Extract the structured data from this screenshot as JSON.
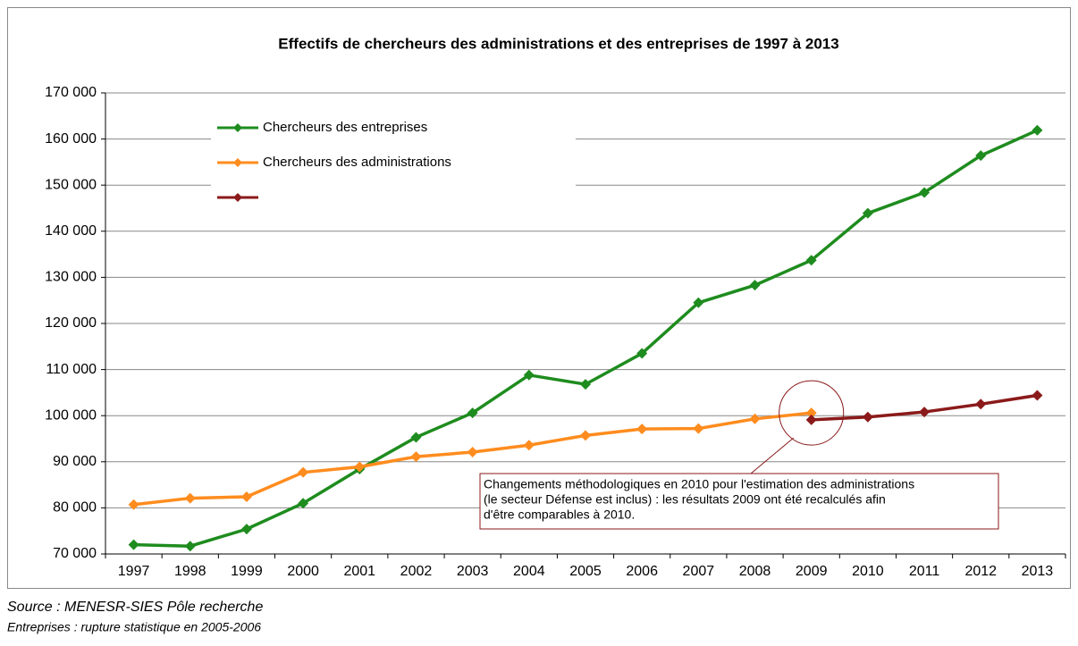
{
  "chart_data": {
    "type": "line",
    "title": "Effectifs de chercheurs des administrations et des entreprises de 1997 à 2013",
    "categories": [
      "1997",
      "1998",
      "1999",
      "2000",
      "2001",
      "2002",
      "2003",
      "2004",
      "2005",
      "2006",
      "2007",
      "2008",
      "2009",
      "2010",
      "2011",
      "2012",
      "2013"
    ],
    "series": [
      {
        "name": "Chercheurs des entreprises",
        "color": "#1e8c1e",
        "values": [
          72000,
          71700,
          75400,
          81000,
          88400,
          95300,
          100600,
          108800,
          106800,
          113500,
          124500,
          128300,
          133700,
          143900,
          148400,
          156400,
          161900
        ]
      },
      {
        "name": "Chercheurs des administrations",
        "color": "#ff8c1e",
        "values": [
          80700,
          82100,
          82400,
          87700,
          88900,
          91100,
          92100,
          93600,
          95700,
          97100,
          97200,
          99300,
          100600,
          null,
          null,
          null,
          null
        ]
      },
      {
        "color": "#8b1a1a",
        "values": [
          null,
          null,
          null,
          null,
          null,
          null,
          null,
          null,
          null,
          null,
          null,
          null,
          99100,
          99700,
          100800,
          102500,
          104400
        ]
      }
    ],
    "ylim": [
      70000,
      170000
    ],
    "yticks": [
      {
        "value": 70000,
        "label": "70 000"
      },
      {
        "value": 80000,
        "label": "80 000"
      },
      {
        "value": 90000,
        "label": "90 000"
      },
      {
        "value": 100000,
        "label": "100 000"
      },
      {
        "value": 110000,
        "label": "110 000"
      },
      {
        "value": 120000,
        "label": "120 000"
      },
      {
        "value": 130000,
        "label": "130 000"
      },
      {
        "value": 140000,
        "label": "140 000"
      },
      {
        "value": 150000,
        "label": "150 000"
      },
      {
        "value": 160000,
        "label": "160 000"
      },
      {
        "value": 170000,
        "label": "170 000"
      }
    ],
    "grid": true,
    "legend": "top-left",
    "annotation": [
      "Changements méthodologiques en 2010 pour l'estimation des administrations",
      "(le secteur Défense est inclus)  : les résultats 2009 ont été recalculés afin",
      "d'être comparables à 2010."
    ],
    "notes": [
      "Source : MENESR-SIES Pôle recherche",
      "Entreprises : rupture statistique en 2005-2006"
    ]
  }
}
